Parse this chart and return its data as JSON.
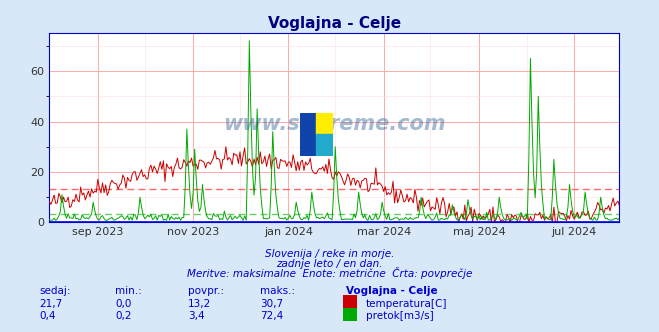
{
  "title": "Voglajna - Celje",
  "title_color": "#000080",
  "bg_color": "#d8e8f8",
  "plot_bg_color": "#ffffff",
  "y_min": 0,
  "y_max": 75,
  "y_ticks": [
    0,
    20,
    40,
    60
  ],
  "x_tick_labels": [
    "sep 2023",
    "nov 2023",
    "jan 2024",
    "mar 2024",
    "maj 2024",
    "jul 2024"
  ],
  "x_tick_positions": [
    31,
    92,
    153,
    214,
    275,
    336
  ],
  "temp_color": "#cc0000",
  "flow_color": "#00aa00",
  "temp_avg": 13.2,
  "flow_avg": 3.4,
  "temp_hline_color": "#ff6666",
  "flow_hline_color": "#66cc66",
  "watermark_text": "www.si-vreme.com",
  "footer_line1": "Slovenija / reke in morje.",
  "footer_line2": "zadnje leto / en dan.",
  "footer_line3": "Meritve: maksimalne  Enote: metrične  Črta: povprečje",
  "footer_color": "#0000cc",
  "table_header": [
    "sedaj:",
    "min.:",
    "povpr.:",
    "maks.:",
    "Voglajna - Celje"
  ],
  "table_row1": [
    "21,7",
    "0,0",
    "13,2",
    "30,7",
    "temperatura[C]"
  ],
  "table_row2": [
    "0,4",
    "0,2",
    "3,4",
    "72,4",
    "pretok[m3/s]"
  ],
  "table_color": "#0000cc",
  "grid_color_major": "#ffaaaa",
  "grid_color_minor": "#ffdddd",
  "border_color": "#0000cc"
}
